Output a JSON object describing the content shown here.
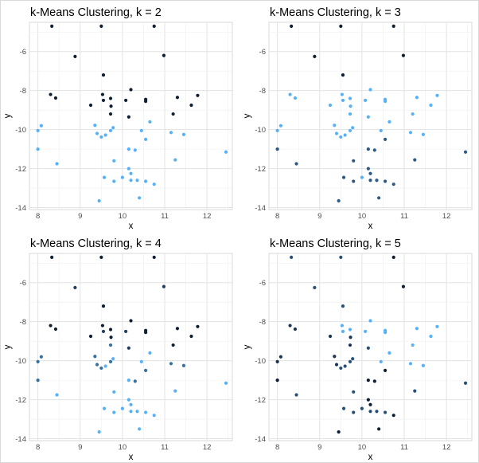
{
  "chart_data": [
    {
      "type": "scatter",
      "title": "k-Means Clustering, k = 2",
      "xlabel": "x",
      "ylabel": "y",
      "xlim": [
        7.8,
        12.6
      ],
      "ylim": [
        -14.1,
        -4.5
      ],
      "xticks": [
        "8",
        "9",
        "10",
        "11",
        "12"
      ],
      "yticks": [
        "-14",
        "-12",
        "-10",
        "-8",
        "-6"
      ],
      "grid": true,
      "cluster_colors": [
        "#0e1f33",
        "#56b1f7"
      ],
      "points": [
        {
          "x": 8.33,
          "y": -4.7,
          "c": 1
        },
        {
          "x": 9.5,
          "y": -4.7,
          "c": 1
        },
        {
          "x": 10.75,
          "y": -4.7,
          "c": 1
        },
        {
          "x": 8.88,
          "y": -6.25,
          "c": 1
        },
        {
          "x": 10.98,
          "y": -6.2,
          "c": 1
        },
        {
          "x": 9.55,
          "y": -7.2,
          "c": 1
        },
        {
          "x": 8.3,
          "y": -8.2,
          "c": 1
        },
        {
          "x": 8.42,
          "y": -8.38,
          "c": 1
        },
        {
          "x": 9.25,
          "y": -8.75,
          "c": 1
        },
        {
          "x": 9.53,
          "y": -8.2,
          "c": 1
        },
        {
          "x": 9.55,
          "y": -8.5,
          "c": 1
        },
        {
          "x": 9.72,
          "y": -8.4,
          "c": 1
        },
        {
          "x": 9.73,
          "y": -8.8,
          "c": 1
        },
        {
          "x": 9.72,
          "y": -9.2,
          "c": 1
        },
        {
          "x": 10.08,
          "y": -8.5,
          "c": 1
        },
        {
          "x": 10.15,
          "y": -9.35,
          "c": 1
        },
        {
          "x": 10.2,
          "y": -7.95,
          "c": 1
        },
        {
          "x": 10.55,
          "y": -8.45,
          "c": 1
        },
        {
          "x": 10.55,
          "y": -8.55,
          "c": 1
        },
        {
          "x": 11.3,
          "y": -8.35,
          "c": 1
        },
        {
          "x": 11.2,
          "y": -9.2,
          "c": 1
        },
        {
          "x": 11.63,
          "y": -8.75,
          "c": 1
        },
        {
          "x": 11.78,
          "y": -8.25,
          "c": 1
        },
        {
          "x": 8.0,
          "y": -10.05,
          "c": 2
        },
        {
          "x": 8.08,
          "y": -9.8,
          "c": 2
        },
        {
          "x": 8.0,
          "y": -11.0,
          "c": 2
        },
        {
          "x": 8.45,
          "y": -11.75,
          "c": 2
        },
        {
          "x": 9.35,
          "y": -9.78,
          "c": 2
        },
        {
          "x": 9.4,
          "y": -10.2,
          "c": 2
        },
        {
          "x": 9.5,
          "y": -10.38,
          "c": 2
        },
        {
          "x": 9.6,
          "y": -10.28,
          "c": 2
        },
        {
          "x": 9.72,
          "y": -10.05,
          "c": 2
        },
        {
          "x": 9.78,
          "y": -9.9,
          "c": 2
        },
        {
          "x": 9.8,
          "y": -11.6,
          "c": 2
        },
        {
          "x": 9.8,
          "y": -12.65,
          "c": 2
        },
        {
          "x": 9.57,
          "y": -12.45,
          "c": 2
        },
        {
          "x": 9.45,
          "y": -13.65,
          "c": 2
        },
        {
          "x": 10.0,
          "y": -12.45,
          "c": 2
        },
        {
          "x": 10.15,
          "y": -11.0,
          "c": 2
        },
        {
          "x": 10.15,
          "y": -12.0,
          "c": 2
        },
        {
          "x": 10.2,
          "y": -12.25,
          "c": 2
        },
        {
          "x": 10.2,
          "y": -12.6,
          "c": 2
        },
        {
          "x": 10.3,
          "y": -11.05,
          "c": 2
        },
        {
          "x": 10.35,
          "y": -12.6,
          "c": 2
        },
        {
          "x": 10.4,
          "y": -13.5,
          "c": 2
        },
        {
          "x": 10.45,
          "y": -10.05,
          "c": 2
        },
        {
          "x": 10.55,
          "y": -10.5,
          "c": 2
        },
        {
          "x": 10.55,
          "y": -12.65,
          "c": 2
        },
        {
          "x": 10.65,
          "y": -9.6,
          "c": 2
        },
        {
          "x": 10.75,
          "y": -12.8,
          "c": 2
        },
        {
          "x": 11.15,
          "y": -10.15,
          "c": 2
        },
        {
          "x": 11.25,
          "y": -11.55,
          "c": 2
        },
        {
          "x": 11.45,
          "y": -10.25,
          "c": 2
        },
        {
          "x": 12.45,
          "y": -11.15,
          "c": 2
        }
      ]
    },
    {
      "type": "scatter",
      "title": "k-Means Clustering, k = 3",
      "xlabel": "x",
      "ylabel": "y",
      "xlim": [
        7.8,
        12.6
      ],
      "ylim": [
        -14.1,
        -4.5
      ],
      "xticks": [
        "8",
        "9",
        "10",
        "11",
        "12"
      ],
      "yticks": [
        "-14",
        "-12",
        "-10",
        "-8",
        "-6"
      ],
      "grid": true,
      "cluster_colors": [
        "#0e1f33",
        "#2c5a85",
        "#56b1f7"
      ],
      "points": [
        {
          "x": 8.33,
          "y": -4.7,
          "c": 1
        },
        {
          "x": 9.5,
          "y": -4.7,
          "c": 1
        },
        {
          "x": 10.75,
          "y": -4.7,
          "c": 1
        },
        {
          "x": 8.88,
          "y": -6.25,
          "c": 1
        },
        {
          "x": 10.98,
          "y": -6.2,
          "c": 1
        },
        {
          "x": 9.55,
          "y": -7.2,
          "c": 1
        },
        {
          "x": 8.0,
          "y": -11.0,
          "c": 2
        },
        {
          "x": 8.45,
          "y": -11.75,
          "c": 2
        },
        {
          "x": 9.8,
          "y": -11.6,
          "c": 2
        },
        {
          "x": 9.57,
          "y": -12.45,
          "c": 2
        },
        {
          "x": 9.45,
          "y": -13.65,
          "c": 2
        },
        {
          "x": 9.8,
          "y": -12.65,
          "c": 2
        },
        {
          "x": 10.15,
          "y": -11.0,
          "c": 2
        },
        {
          "x": 10.3,
          "y": -11.05,
          "c": 2
        },
        {
          "x": 10.15,
          "y": -12.0,
          "c": 2
        },
        {
          "x": 10.2,
          "y": -12.25,
          "c": 2
        },
        {
          "x": 10.2,
          "y": -12.6,
          "c": 2
        },
        {
          "x": 10.35,
          "y": -12.6,
          "c": 2
        },
        {
          "x": 10.4,
          "y": -13.5,
          "c": 2
        },
        {
          "x": 10.55,
          "y": -12.65,
          "c": 2
        },
        {
          "x": 10.75,
          "y": -12.8,
          "c": 2
        },
        {
          "x": 10.55,
          "y": -10.5,
          "c": 2
        },
        {
          "x": 11.25,
          "y": -11.55,
          "c": 2
        },
        {
          "x": 12.45,
          "y": -11.15,
          "c": 2
        },
        {
          "x": 8.0,
          "y": -10.05,
          "c": 3
        },
        {
          "x": 8.08,
          "y": -9.8,
          "c": 3
        },
        {
          "x": 8.3,
          "y": -8.2,
          "c": 3
        },
        {
          "x": 8.42,
          "y": -8.38,
          "c": 3
        },
        {
          "x": 9.25,
          "y": -8.75,
          "c": 3
        },
        {
          "x": 9.35,
          "y": -9.78,
          "c": 3
        },
        {
          "x": 9.4,
          "y": -10.2,
          "c": 3
        },
        {
          "x": 9.5,
          "y": -10.38,
          "c": 3
        },
        {
          "x": 9.53,
          "y": -8.2,
          "c": 3
        },
        {
          "x": 9.55,
          "y": -8.5,
          "c": 3
        },
        {
          "x": 9.6,
          "y": -10.28,
          "c": 3
        },
        {
          "x": 9.72,
          "y": -8.4,
          "c": 3
        },
        {
          "x": 9.73,
          "y": -8.8,
          "c": 3
        },
        {
          "x": 9.72,
          "y": -9.2,
          "c": 3
        },
        {
          "x": 9.72,
          "y": -10.05,
          "c": 3
        },
        {
          "x": 9.78,
          "y": -9.9,
          "c": 3
        },
        {
          "x": 10.0,
          "y": -12.45,
          "c": 3
        },
        {
          "x": 10.08,
          "y": -8.5,
          "c": 3
        },
        {
          "x": 10.15,
          "y": -9.35,
          "c": 3
        },
        {
          "x": 10.2,
          "y": -7.95,
          "c": 3
        },
        {
          "x": 10.45,
          "y": -10.05,
          "c": 3
        },
        {
          "x": 10.55,
          "y": -8.45,
          "c": 3
        },
        {
          "x": 10.55,
          "y": -8.55,
          "c": 3
        },
        {
          "x": 10.65,
          "y": -9.6,
          "c": 3
        },
        {
          "x": 11.15,
          "y": -10.15,
          "c": 3
        },
        {
          "x": 11.2,
          "y": -9.2,
          "c": 3
        },
        {
          "x": 11.3,
          "y": -8.35,
          "c": 3
        },
        {
          "x": 11.45,
          "y": -10.25,
          "c": 3
        },
        {
          "x": 11.63,
          "y": -8.75,
          "c": 3
        },
        {
          "x": 11.78,
          "y": -8.25,
          "c": 3
        }
      ]
    },
    {
      "type": "scatter",
      "title": "k-Means Clustering, k = 4",
      "xlabel": "x",
      "ylabel": "y",
      "xlim": [
        7.8,
        12.6
      ],
      "ylim": [
        -14.1,
        -4.5
      ],
      "xticks": [
        "8",
        "9",
        "10",
        "11",
        "12"
      ],
      "yticks": [
        "-14",
        "-12",
        "-10",
        "-8",
        "-6"
      ],
      "grid": true,
      "cluster_colors": [
        "#0e1f33",
        "#1f3f60",
        "#35709f",
        "#56b1f7"
      ],
      "points": [
        {
          "x": 8.33,
          "y": -4.7,
          "c": 1
        },
        {
          "x": 9.5,
          "y": -4.7,
          "c": 1
        },
        {
          "x": 10.75,
          "y": -4.7,
          "c": 1
        },
        {
          "x": 9.55,
          "y": -7.2,
          "c": 1
        },
        {
          "x": 8.3,
          "y": -8.2,
          "c": 1
        },
        {
          "x": 8.42,
          "y": -8.38,
          "c": 1
        },
        {
          "x": 9.25,
          "y": -8.75,
          "c": 1
        },
        {
          "x": 9.53,
          "y": -8.2,
          "c": 1
        },
        {
          "x": 9.72,
          "y": -8.4,
          "c": 1
        },
        {
          "x": 9.73,
          "y": -8.8,
          "c": 1
        },
        {
          "x": 10.2,
          "y": -7.95,
          "c": 1
        },
        {
          "x": 10.55,
          "y": -8.45,
          "c": 1
        },
        {
          "x": 10.55,
          "y": -8.55,
          "c": 1
        },
        {
          "x": 11.3,
          "y": -8.35,
          "c": 1
        },
        {
          "x": 11.2,
          "y": -9.2,
          "c": 1
        },
        {
          "x": 11.63,
          "y": -8.75,
          "c": 1
        },
        {
          "x": 11.78,
          "y": -8.25,
          "c": 1
        },
        {
          "x": 8.88,
          "y": -6.25,
          "c": 2
        },
        {
          "x": 10.98,
          "y": -6.2,
          "c": 2
        },
        {
          "x": 9.55,
          "y": -8.5,
          "c": 2
        },
        {
          "x": 10.08,
          "y": -8.5,
          "c": 2
        },
        {
          "x": 10.15,
          "y": -9.35,
          "c": 2
        },
        {
          "x": 8.0,
          "y": -10.05,
          "c": 3
        },
        {
          "x": 8.08,
          "y": -9.8,
          "c": 3
        },
        {
          "x": 8.0,
          "y": -11.0,
          "c": 3
        },
        {
          "x": 9.35,
          "y": -9.78,
          "c": 3
        },
        {
          "x": 9.4,
          "y": -10.2,
          "c": 3
        },
        {
          "x": 9.5,
          "y": -10.38,
          "c": 3
        },
        {
          "x": 9.72,
          "y": -9.2,
          "c": 3
        },
        {
          "x": 9.72,
          "y": -10.05,
          "c": 3
        },
        {
          "x": 10.55,
          "y": -10.5,
          "c": 3
        },
        {
          "x": 10.3,
          "y": -11.05,
          "c": 3
        },
        {
          "x": 11.15,
          "y": -10.15,
          "c": 3
        },
        {
          "x": 11.45,
          "y": -10.25,
          "c": 3
        },
        {
          "x": 8.45,
          "y": -11.75,
          "c": 4
        },
        {
          "x": 9.6,
          "y": -10.28,
          "c": 4
        },
        {
          "x": 9.78,
          "y": -9.9,
          "c": 4
        },
        {
          "x": 9.8,
          "y": -11.6,
          "c": 4
        },
        {
          "x": 9.8,
          "y": -12.65,
          "c": 4
        },
        {
          "x": 9.57,
          "y": -12.45,
          "c": 4
        },
        {
          "x": 9.45,
          "y": -13.65,
          "c": 4
        },
        {
          "x": 10.0,
          "y": -12.45,
          "c": 4
        },
        {
          "x": 10.15,
          "y": -11.0,
          "c": 4
        },
        {
          "x": 10.15,
          "y": -12.0,
          "c": 4
        },
        {
          "x": 10.2,
          "y": -12.25,
          "c": 4
        },
        {
          "x": 10.2,
          "y": -12.6,
          "c": 4
        },
        {
          "x": 10.35,
          "y": -12.6,
          "c": 4
        },
        {
          "x": 10.4,
          "y": -13.5,
          "c": 4
        },
        {
          "x": 10.45,
          "y": -10.05,
          "c": 4
        },
        {
          "x": 10.55,
          "y": -12.65,
          "c": 4
        },
        {
          "x": 10.65,
          "y": -9.6,
          "c": 4
        },
        {
          "x": 10.75,
          "y": -12.8,
          "c": 4
        },
        {
          "x": 11.25,
          "y": -11.55,
          "c": 4
        },
        {
          "x": 12.45,
          "y": -11.15,
          "c": 4
        }
      ]
    },
    {
      "type": "scatter",
      "title": "k-Means Clustering, k = 5",
      "xlabel": "x",
      "ylabel": "y",
      "xlim": [
        7.8,
        12.6
      ],
      "ylim": [
        -14.1,
        -4.5
      ],
      "xticks": [
        "8",
        "9",
        "10",
        "11",
        "12"
      ],
      "yticks": [
        "-14",
        "-12",
        "-10",
        "-8",
        "-6"
      ],
      "grid": true,
      "cluster_colors": [
        "#0e1f33",
        "#1a3553",
        "#265075",
        "#3a7cb1",
        "#56b1f7"
      ],
      "points": [
        {
          "x": 8.33,
          "y": -4.7,
          "c": 3
        },
        {
          "x": 9.5,
          "y": -4.7,
          "c": 3
        },
        {
          "x": 10.75,
          "y": -4.7,
          "c": 1
        },
        {
          "x": 8.88,
          "y": -6.25,
          "c": 3
        },
        {
          "x": 10.98,
          "y": -6.2,
          "c": 1
        },
        {
          "x": 9.55,
          "y": -7.2,
          "c": 3
        },
        {
          "x": 8.3,
          "y": -8.2,
          "c": 2
        },
        {
          "x": 8.42,
          "y": -8.38,
          "c": 2
        },
        {
          "x": 9.25,
          "y": -8.75,
          "c": 2
        },
        {
          "x": 9.73,
          "y": -8.8,
          "c": 2
        },
        {
          "x": 9.72,
          "y": -9.2,
          "c": 2
        },
        {
          "x": 9.35,
          "y": -9.78,
          "c": 2
        },
        {
          "x": 9.4,
          "y": -10.2,
          "c": 2
        },
        {
          "x": 8.0,
          "y": -10.05,
          "c": 2
        },
        {
          "x": 8.08,
          "y": -9.8,
          "c": 2
        },
        {
          "x": 8.0,
          "y": -11.0,
          "c": 1
        },
        {
          "x": 10.55,
          "y": -10.5,
          "c": 1
        },
        {
          "x": 10.75,
          "y": -12.8,
          "c": 1
        },
        {
          "x": 10.3,
          "y": -11.05,
          "c": 1
        },
        {
          "x": 10.15,
          "y": -11.0,
          "c": 1
        },
        {
          "x": 10.15,
          "y": -12.0,
          "c": 1
        },
        {
          "x": 10.2,
          "y": -12.25,
          "c": 1
        },
        {
          "x": 10.4,
          "y": -13.5,
          "c": 1
        },
        {
          "x": 9.45,
          "y": -13.65,
          "c": 1
        },
        {
          "x": 9.5,
          "y": -10.38,
          "c": 3
        },
        {
          "x": 9.6,
          "y": -10.28,
          "c": 3
        },
        {
          "x": 9.72,
          "y": -10.05,
          "c": 3
        },
        {
          "x": 9.78,
          "y": -9.9,
          "c": 3
        },
        {
          "x": 10.15,
          "y": -9.35,
          "c": 3
        },
        {
          "x": 8.45,
          "y": -11.75,
          "c": 3
        },
        {
          "x": 9.8,
          "y": -11.6,
          "c": 3
        },
        {
          "x": 9.57,
          "y": -12.45,
          "c": 3
        },
        {
          "x": 9.8,
          "y": -12.65,
          "c": 3
        },
        {
          "x": 10.2,
          "y": -12.6,
          "c": 3
        },
        {
          "x": 10.35,
          "y": -12.6,
          "c": 3
        },
        {
          "x": 10.55,
          "y": -12.65,
          "c": 3
        },
        {
          "x": 11.25,
          "y": -11.55,
          "c": 3
        },
        {
          "x": 12.45,
          "y": -11.15,
          "c": 3
        },
        {
          "x": 10.0,
          "y": -12.45,
          "c": 3
        },
        {
          "x": 9.53,
          "y": -8.2,
          "c": 5
        },
        {
          "x": 9.55,
          "y": -8.5,
          "c": 5
        },
        {
          "x": 9.72,
          "y": -8.4,
          "c": 5
        },
        {
          "x": 10.08,
          "y": -8.5,
          "c": 5
        },
        {
          "x": 10.2,
          "y": -7.95,
          "c": 5
        },
        {
          "x": 10.55,
          "y": -8.45,
          "c": 5
        },
        {
          "x": 10.55,
          "y": -8.55,
          "c": 5
        },
        {
          "x": 10.45,
          "y": -10.05,
          "c": 5
        },
        {
          "x": 10.65,
          "y": -9.6,
          "c": 5
        },
        {
          "x": 11.15,
          "y": -10.15,
          "c": 5
        },
        {
          "x": 11.2,
          "y": -9.2,
          "c": 5
        },
        {
          "x": 11.3,
          "y": -8.35,
          "c": 5
        },
        {
          "x": 11.45,
          "y": -10.25,
          "c": 5
        },
        {
          "x": 11.63,
          "y": -8.75,
          "c": 5
        },
        {
          "x": 11.78,
          "y": -8.25,
          "c": 5
        }
      ]
    }
  ]
}
